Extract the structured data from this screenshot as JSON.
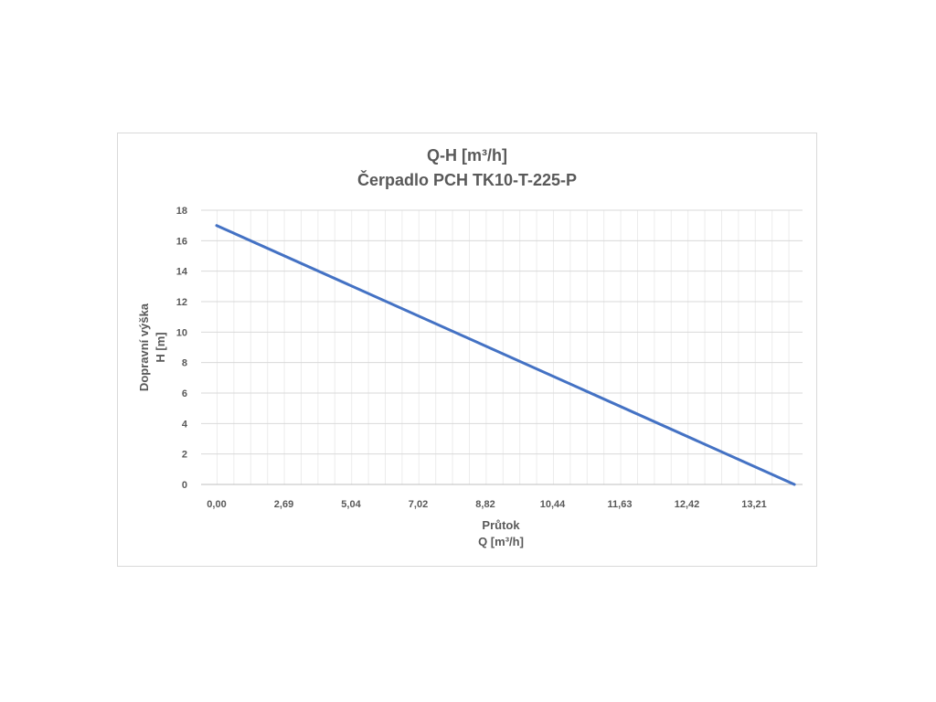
{
  "chart_data": {
    "type": "line",
    "title": "Q-H  [m³/h]",
    "subtitle": "Čerpadlo PCH TK10-T-225-P",
    "xlabel": [
      "Průtok",
      "Q [m³/h]"
    ],
    "ylabel": [
      "Dopravní výška",
      "H [m]"
    ],
    "x_tick_labels": [
      "0,00",
      "2,69",
      "5,04",
      "7,02",
      "8,82",
      "10,44",
      "11,63",
      "12,42",
      "13,21"
    ],
    "ylim": [
      0,
      18
    ],
    "y_ticks": [
      0,
      2,
      4,
      6,
      8,
      10,
      12,
      14,
      16,
      18
    ],
    "grid": true,
    "legend": "none",
    "series": [
      {
        "line_color": "#4472c4",
        "points": [
          {
            "x_index": 0,
            "y": 17
          },
          {
            "x_index": 8.6,
            "y": 0
          }
        ]
      }
    ]
  }
}
